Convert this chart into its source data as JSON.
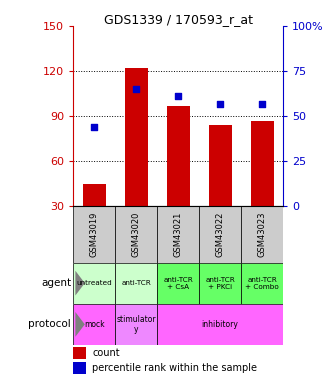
{
  "title": "GDS1339 / 170593_r_at",
  "samples": [
    "GSM43019",
    "GSM43020",
    "GSM43021",
    "GSM43022",
    "GSM43023"
  ],
  "counts": [
    45,
    122,
    97,
    84,
    87
  ],
  "percentile_ranks_right": [
    44,
    65,
    61,
    57,
    57
  ],
  "left_yticks": [
    30,
    60,
    90,
    120,
    150
  ],
  "right_yticks": [
    0,
    25,
    50,
    75,
    100
  ],
  "right_yticklabels": [
    "0",
    "25",
    "50",
    "75",
    "100%"
  ],
  "left_ylim": [
    30,
    150
  ],
  "right_ylim": [
    0,
    100
  ],
  "bar_color": "#cc0000",
  "dot_color": "#0000cc",
  "agent_labels": [
    "untreated",
    "anti-TCR",
    "anti-TCR\n+ CsA",
    "anti-TCR\n+ PKCi",
    "anti-TCR\n+ Combo"
  ],
  "agent_colors": [
    "#ccffcc",
    "#ccffcc",
    "#66ff66",
    "#66ff66",
    "#66ff66"
  ],
  "protocol_spans": [
    [
      0,
      1,
      "mock",
      "#ff66ff"
    ],
    [
      1,
      1,
      "stimulator\ny",
      "#ee88ff"
    ],
    [
      2,
      3,
      "inhibitory",
      "#ff66ff"
    ]
  ],
  "sample_bg_color": "#cccccc",
  "left_axis_color": "#cc0000",
  "right_axis_color": "#0000cc",
  "legend_items": [
    {
      "color": "#cc0000",
      "label": "count"
    },
    {
      "color": "#0000cc",
      "label": "percentile rank within the sample"
    }
  ]
}
